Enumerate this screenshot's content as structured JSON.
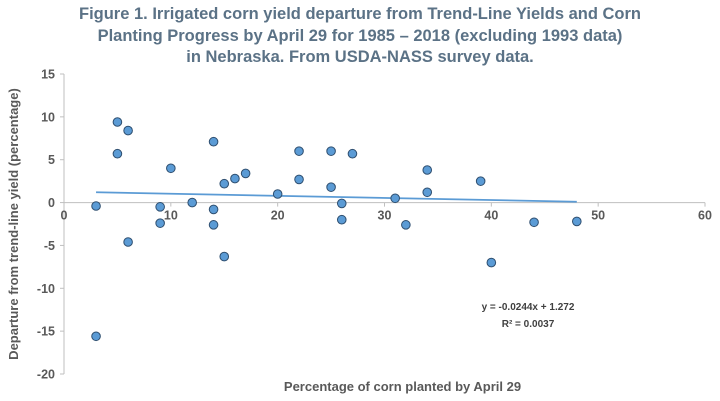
{
  "chart_data": {
    "type": "scatter",
    "title_lines": [
      "Figure 1. Irrigated  corn yield departure from Trend-Line Yields and Corn",
      "Planting Progress by April 29 for 1985 – 2018 (excluding 1993 data)",
      "in Nebraska. From USDA-NASS survey data."
    ],
    "xlabel": "Percentage of corn planted by April 29",
    "ylabel": "Departure from trend-line yield (percentage)",
    "xlim": [
      0,
      60
    ],
    "ylim": [
      -20,
      15
    ],
    "x_ticks": [
      0,
      10,
      20,
      30,
      40,
      50,
      60
    ],
    "y_ticks": [
      15,
      10,
      5,
      0,
      -5,
      -10,
      -15,
      -20
    ],
    "grid": false,
    "points": [
      {
        "x": 3,
        "y": -0.4
      },
      {
        "x": 3,
        "y": -15.6
      },
      {
        "x": 5,
        "y": 9.4
      },
      {
        "x": 5,
        "y": 5.7
      },
      {
        "x": 6,
        "y": 8.4
      },
      {
        "x": 6,
        "y": -4.6
      },
      {
        "x": 9,
        "y": -0.5
      },
      {
        "x": 9,
        "y": -2.4
      },
      {
        "x": 10,
        "y": 4.0
      },
      {
        "x": 12,
        "y": 0.0
      },
      {
        "x": 14,
        "y": 7.1
      },
      {
        "x": 14,
        "y": -0.8
      },
      {
        "x": 14,
        "y": -2.6
      },
      {
        "x": 15,
        "y": 2.2
      },
      {
        "x": 15,
        "y": -6.3
      },
      {
        "x": 16,
        "y": 2.8
      },
      {
        "x": 17,
        "y": 3.4
      },
      {
        "x": 20,
        "y": 1.0
      },
      {
        "x": 22,
        "y": 6.0
      },
      {
        "x": 22,
        "y": 2.7
      },
      {
        "x": 25,
        "y": 6.0
      },
      {
        "x": 25,
        "y": 1.8
      },
      {
        "x": 26,
        "y": -0.1
      },
      {
        "x": 26,
        "y": -2.0
      },
      {
        "x": 27,
        "y": 5.7
      },
      {
        "x": 31,
        "y": 0.5
      },
      {
        "x": 32,
        "y": -2.6
      },
      {
        "x": 34,
        "y": 3.8
      },
      {
        "x": 34,
        "y": 1.2
      },
      {
        "x": 39,
        "y": 2.5
      },
      {
        "x": 40,
        "y": -7.0
      },
      {
        "x": 44,
        "y": -2.3
      },
      {
        "x": 48,
        "y": -2.2
      }
    ],
    "trendline": {
      "slope": -0.0244,
      "intercept": 1.272,
      "x_range": [
        3,
        48
      ],
      "equation": "y = -0.0244x + 1.272",
      "r_squared": "R² = 0.0037"
    },
    "colors": {
      "title": "#5b7286",
      "marker_fill": "#5b9bd5",
      "marker_stroke": "#2e4e6f",
      "trendline": "#5b9bd5",
      "axis": "#bfbfbf",
      "text": "#595959"
    }
  }
}
